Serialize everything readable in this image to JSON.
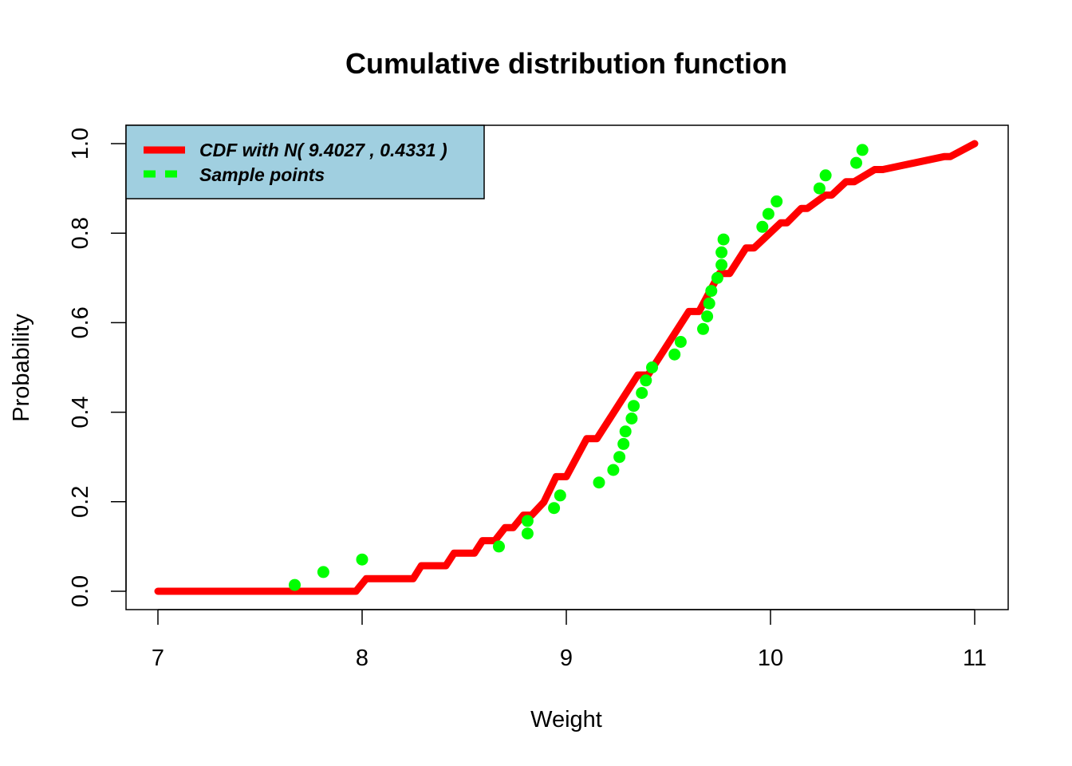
{
  "chart_data": {
    "type": "line",
    "title": "Cumulative distribution function",
    "xlabel": "Weight",
    "ylabel": "Probability",
    "xlim": [
      7,
      11
    ],
    "ylim": [
      0,
      1
    ],
    "x_ticks": [
      "7",
      "8",
      "9",
      "10",
      "11"
    ],
    "y_ticks": [
      "0.0",
      "0.2",
      "0.4",
      "0.6",
      "0.8",
      "1.0"
    ],
    "grid": false,
    "legend": {
      "placement": "top-left",
      "background": "#a0cfe0",
      "entries": [
        {
          "label": "CDF with N( 9.4027 , 0.4331 )",
          "color": "#ff0000",
          "style": "solid"
        },
        {
          "label": "Sample points",
          "color": "#00ff00",
          "style": "dashed"
        }
      ]
    },
    "series": [
      {
        "name": "CDF with N( 9.4027 , 0.4331 )",
        "kind": "line",
        "color": "#ff0000",
        "x": [
          7.0,
          7.97,
          8.02,
          8.25,
          8.29,
          8.41,
          8.45,
          8.55,
          8.59,
          8.65,
          8.7,
          8.74,
          8.79,
          8.83,
          8.89,
          8.95,
          9.0,
          9.1,
          9.15,
          9.35,
          9.4,
          9.6,
          9.65,
          9.75,
          9.8,
          9.88,
          9.92,
          10.05,
          10.08,
          10.15,
          10.18,
          10.27,
          10.3,
          10.37,
          10.41,
          10.51,
          10.55,
          10.85,
          10.88,
          11.0
        ],
        "y": [
          0.0,
          0.0,
          0.028,
          0.028,
          0.057,
          0.057,
          0.085,
          0.085,
          0.113,
          0.113,
          0.142,
          0.142,
          0.17,
          0.17,
          0.199,
          0.256,
          0.256,
          0.341,
          0.341,
          0.483,
          0.483,
          0.625,
          0.625,
          0.71,
          0.71,
          0.767,
          0.767,
          0.823,
          0.823,
          0.855,
          0.855,
          0.885,
          0.885,
          0.915,
          0.915,
          0.942,
          0.942,
          0.971,
          0.971,
          1.0
        ]
      },
      {
        "name": "Sample points",
        "kind": "scatter",
        "color": "#00ff00",
        "x": [
          7.67,
          7.81,
          8.0,
          8.67,
          8.81,
          8.81,
          8.94,
          8.97,
          9.16,
          9.23,
          9.26,
          9.28,
          9.29,
          9.32,
          9.33,
          9.37,
          9.39,
          9.42,
          9.53,
          9.56,
          9.67,
          9.69,
          9.7,
          9.71,
          9.74,
          9.76,
          9.76,
          9.77,
          9.96,
          9.99,
          10.03,
          10.24,
          10.27,
          10.42,
          10.45
        ],
        "y": [
          0.014,
          0.043,
          0.071,
          0.1,
          0.129,
          0.157,
          0.186,
          0.214,
          0.243,
          0.271,
          0.3,
          0.329,
          0.357,
          0.386,
          0.414,
          0.443,
          0.471,
          0.5,
          0.529,
          0.557,
          0.586,
          0.614,
          0.643,
          0.671,
          0.7,
          0.729,
          0.757,
          0.786,
          0.814,
          0.843,
          0.871,
          0.9,
          0.929,
          0.957,
          0.986
        ]
      }
    ]
  }
}
